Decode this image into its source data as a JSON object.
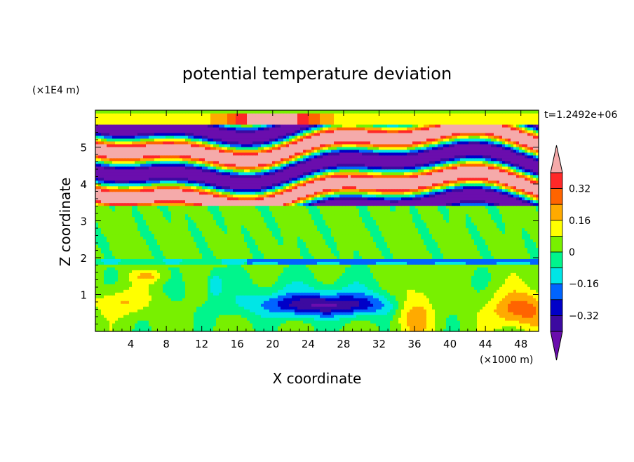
{
  "chart_data": {
    "type": "heatmap",
    "title": "potential temperature deviation",
    "xlabel": "X coordinate",
    "ylabel": "Z coordinate",
    "x_unit": "(×1000 m)",
    "y_unit": "(×1E4 m)",
    "time_label": "t=1.2492e+06",
    "xlim": [
      0,
      50
    ],
    "ylim": [
      0,
      6
    ],
    "x_ticks": [
      4,
      8,
      12,
      16,
      20,
      24,
      28,
      32,
      36,
      40,
      44,
      48
    ],
    "y_ticks": [
      1,
      2,
      3,
      4,
      5
    ],
    "colorbar": {
      "levels": [
        -0.4,
        -0.32,
        -0.24,
        -0.16,
        -0.08,
        0,
        0.08,
        0.16,
        0.24,
        0.32,
        0.4
      ],
      "tick_labels": [
        "0.32",
        "0.16",
        "0",
        "−0.16",
        "−0.32"
      ],
      "tick_values": [
        0.32,
        0.16,
        0,
        -0.16,
        -0.32
      ],
      "colors": [
        "#6a0dad",
        "#3c0aa0",
        "#0000c8",
        "#0064ff",
        "#00e6e6",
        "#00f58c",
        "#78f000",
        "#ffff00",
        "#ffaa00",
        "#ff6400",
        "#ff2828",
        "#f5aaaa"
      ]
    },
    "field_features": [
      {
        "region": "lower layer 0-2",
        "description": "weak mixed anomalies"
      },
      {
        "region": "cold pool",
        "x": 26,
        "z": 0.75,
        "value": -0.3
      },
      {
        "region": "warm core right",
        "x": 48,
        "z": 0.8,
        "value": 0.24
      },
      {
        "region": "upper layers 3.5-5.8",
        "description": "alternating bands of strong positive and negative deviation"
      }
    ]
  }
}
